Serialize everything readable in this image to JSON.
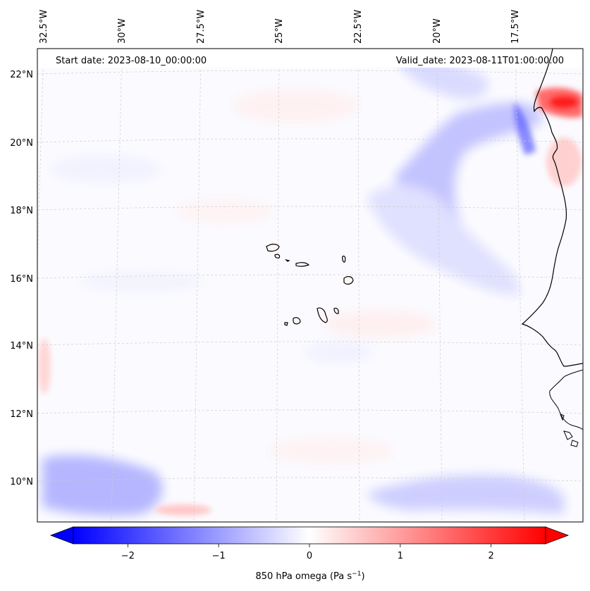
{
  "map": {
    "lon_labels": [
      "32.5°W",
      "30°W",
      "27.5°W",
      "25°W",
      "22.5°W",
      "20°W",
      "17.5°W"
    ],
    "lat_labels": [
      "22°N",
      "20°N",
      "18°N",
      "16°N",
      "14°N",
      "12°N",
      "10°N"
    ],
    "start_label": "Start date: 2023-08-10_00:00:00",
    "valid_label": "Valid_date: 2023-08-11T01:00:00.00",
    "colors": {
      "negative": "#0000ff",
      "neutral": "#ffffff",
      "positive": "#ff0000",
      "coastline": "#000000",
      "gridline": "#cccccc"
    }
  },
  "colorbar": {
    "ticks": [
      "−2",
      "−1",
      "0",
      "1",
      "2"
    ],
    "tick_values": [
      -2,
      -1,
      0,
      1,
      2
    ],
    "range": [
      -2.6,
      2.6
    ],
    "extend": "both"
  },
  "colorbar_label": {
    "text": "850 hPa omega (Pa s",
    "superscript": "−1",
    "suffix": ")"
  }
}
